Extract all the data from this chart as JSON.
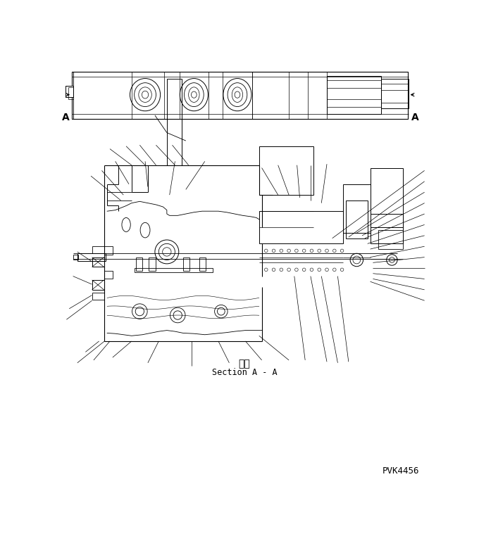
{
  "bg_color": "#ffffff",
  "line_color": "#000000",
  "text_japanese": "断面",
  "text_english": "Section A - A",
  "label_A_left": "A",
  "label_A_right": "A",
  "code": "PVK4456",
  "fig_width": 6.8,
  "fig_height": 7.69,
  "dpi": 100
}
